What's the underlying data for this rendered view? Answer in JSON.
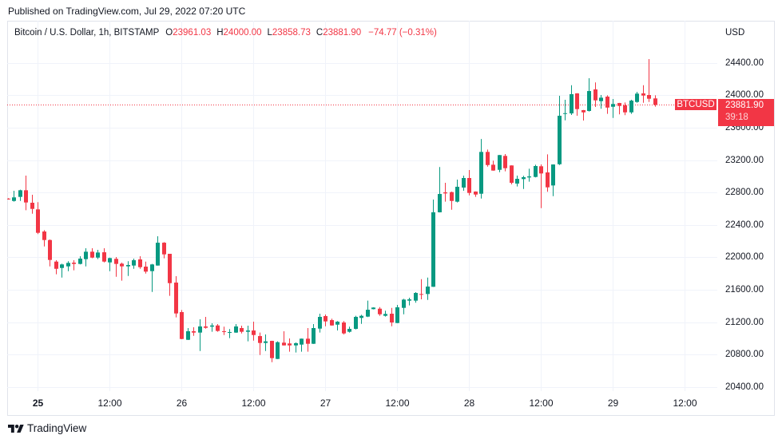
{
  "header": {
    "published": "Published on TradingView.com, Jul 29, 2022 07:20 UTC"
  },
  "legend": {
    "title": "Bitcoin / U.S. Dollar, 1h, BITSTAMP",
    "open_label": "O",
    "open_value": "23961.03",
    "high_label": "H",
    "high_value": "24000.00",
    "low_label": "L",
    "low_value": "23858.73",
    "close_label": "C",
    "close_value": "23881.90",
    "change": "−74.77 (−0.31%)"
  },
  "price_axis": {
    "currency": "USD"
  },
  "last_price": {
    "symbol": "BTCUSD",
    "price": "23881.90",
    "countdown": "39:18"
  },
  "footer": {
    "brand": "TradingView",
    "logo_icon": "tradingview-logo-icon"
  },
  "colors": {
    "up": "#089981",
    "down": "#f23645",
    "grid": "#f0f3fa",
    "border": "#e0e3eb",
    "text": "#131722",
    "last_price_line": "#f23645"
  },
  "chart_data": {
    "type": "candlestick",
    "title": "Bitcoin / U.S. Dollar, 1h, BITSTAMP",
    "symbol": "BTCUSD",
    "exchange": "BITSTAMP",
    "interval": "1h",
    "xlabel": "",
    "ylabel": "USD",
    "ylim": [
      20350,
      24919
    ],
    "grid": true,
    "x_start": "Jul 24 19:00",
    "last_price": 23881.9,
    "y_ticks": [
      {
        "value": 24400,
        "label": "24400.00"
      },
      {
        "value": 24000,
        "label": "24000.00"
      },
      {
        "value": 23600,
        "label": "23600.00"
      },
      {
        "value": 23200,
        "label": "23200.00"
      },
      {
        "value": 22800,
        "label": "22800.00"
      },
      {
        "value": 22400,
        "label": "22400.00"
      },
      {
        "value": 22000,
        "label": "22000.00"
      },
      {
        "value": 21600,
        "label": "21600.00"
      },
      {
        "value": 21200,
        "label": "21200.00"
      },
      {
        "value": 20800,
        "label": "20800.00"
      },
      {
        "value": 20400,
        "label": "20400.00"
      }
    ],
    "x_ticks": [
      {
        "label": "25",
        "bar": 5,
        "bold": true
      },
      {
        "label": "12:00",
        "bar": 17,
        "bold": false
      },
      {
        "label": "26",
        "bar": 29,
        "bold": false
      },
      {
        "label": "12:00",
        "bar": 41,
        "bold": false
      },
      {
        "label": "27",
        "bar": 53,
        "bold": false
      },
      {
        "label": "12:00",
        "bar": 65,
        "bold": false
      },
      {
        "label": "28",
        "bar": 77,
        "bold": false
      },
      {
        "label": "12:00",
        "bar": 89,
        "bold": false
      },
      {
        "label": "29",
        "bar": 101,
        "bold": false
      },
      {
        "label": "12:00",
        "bar": 113,
        "bold": false
      }
    ],
    "candle_fields": [
      "open",
      "high",
      "low",
      "close"
    ],
    "candles": [
      [
        22725,
        22730,
        22712,
        22718
      ],
      [
        22696,
        22821,
        22687,
        22740
      ],
      [
        22746,
        22835,
        22696,
        22828
      ],
      [
        22828,
        23009,
        22582,
        22677
      ],
      [
        22674,
        22772,
        22539,
        22598
      ],
      [
        22592,
        22681,
        22287,
        22303
      ],
      [
        22319,
        22336,
        22135,
        22214
      ],
      [
        22214,
        22221,
        21889,
        21968
      ],
      [
        21948,
        21965,
        21791,
        21859
      ],
      [
        21869,
        21922,
        21751,
        21913
      ],
      [
        21889,
        21952,
        21830,
        21932
      ],
      [
        21935,
        21965,
        21840,
        21919
      ],
      [
        21919,
        22014,
        21913,
        21985
      ],
      [
        21978,
        22113,
        21889,
        22070
      ],
      [
        22070,
        22113,
        21990,
        21997
      ],
      [
        21997,
        22093,
        21978,
        22060
      ],
      [
        22063,
        22113,
        21938,
        21948
      ],
      [
        21938,
        21997,
        21830,
        21991
      ],
      [
        21982,
        22004,
        21761,
        21919
      ],
      [
        21922,
        21935,
        21712,
        21889
      ],
      [
        21889,
        21952,
        21771,
        21906
      ],
      [
        21899,
        21985,
        21859,
        21965
      ],
      [
        21975,
        22014,
        21859,
        21879
      ],
      [
        21886,
        21948,
        21800,
        21824
      ],
      [
        21830,
        21919,
        21574,
        21913
      ],
      [
        21899,
        22260,
        21899,
        22181
      ],
      [
        22181,
        22188,
        21988,
        22037
      ],
      [
        22044,
        22044,
        21525,
        21682
      ],
      [
        21689,
        21768,
        21259,
        21308
      ],
      [
        21325,
        21351,
        20990,
        20993
      ],
      [
        20983,
        21128,
        20980,
        21089
      ],
      [
        21089,
        21138,
        21032,
        21072
      ],
      [
        21072,
        21236,
        20845,
        21148
      ],
      [
        21148,
        21266,
        21121,
        21131
      ],
      [
        21145,
        21187,
        21082,
        21160
      ],
      [
        21160,
        21177,
        21082,
        21092
      ],
      [
        21089,
        21145,
        21042,
        21079
      ],
      [
        21069,
        21115,
        21003,
        21079
      ],
      [
        21072,
        21177,
        21069,
        21148
      ],
      [
        21128,
        21157,
        21062,
        21082
      ],
      [
        21082,
        21157,
        20964,
        21098
      ],
      [
        21098,
        21207,
        20973,
        21042
      ],
      [
        21029,
        21072,
        20796,
        20944
      ],
      [
        20944,
        21049,
        20845,
        20964
      ],
      [
        20970,
        20972,
        20707,
        20757
      ],
      [
        20747,
        20964,
        20745,
        20954
      ],
      [
        20948,
        21089,
        20912,
        20914
      ],
      [
        20938,
        21000,
        20836,
        20914
      ],
      [
        20914,
        20951,
        20826,
        20941
      ],
      [
        20924,
        20999,
        20836,
        20997
      ],
      [
        20997,
        21128,
        20836,
        20934
      ],
      [
        20934,
        21177,
        20932,
        21128
      ],
      [
        21121,
        21305,
        21072,
        21266
      ],
      [
        21276,
        21295,
        21150,
        21210
      ],
      [
        21226,
        21243,
        21158,
        21160
      ],
      [
        21170,
        21214,
        21098,
        21207
      ],
      [
        21197,
        21214,
        21049,
        21062
      ],
      [
        21082,
        21145,
        21072,
        21118
      ],
      [
        21118,
        21279,
        21111,
        21266
      ],
      [
        21253,
        21292,
        21180,
        21279
      ],
      [
        21269,
        21466,
        21263,
        21354
      ],
      [
        21361,
        21384,
        21358,
        21381
      ],
      [
        21367,
        21387,
        21279,
        21298
      ],
      [
        21279,
        21342,
        21269,
        21302
      ],
      [
        21305,
        21377,
        21150,
        21197
      ],
      [
        21190,
        21413,
        21188,
        21384
      ],
      [
        21377,
        21489,
        21298,
        21479
      ],
      [
        21466,
        21502,
        21407,
        21482
      ],
      [
        21466,
        21571,
        21440,
        21561
      ],
      [
        21548,
        21731,
        21482,
        21539
      ],
      [
        21548,
        21751,
        21475,
        21640
      ],
      [
        21637,
        22713,
        21635,
        22556
      ],
      [
        22556,
        23114,
        22554,
        22782
      ],
      [
        22802,
        22920,
        22687,
        22789
      ],
      [
        22805,
        22812,
        22588,
        22696
      ],
      [
        22687,
        22959,
        22677,
        22871
      ],
      [
        22861,
        23009,
        22821,
        22979
      ],
      [
        22979,
        23077,
        22765,
        22795
      ],
      [
        22812,
        22814,
        22746,
        22775
      ],
      [
        22785,
        23461,
        22726,
        23301
      ],
      [
        23301,
        23330,
        23120,
        23139
      ],
      [
        23143,
        23193,
        23069,
        23071
      ],
      [
        23080,
        23264,
        23051,
        23262
      ],
      [
        23252,
        23274,
        23061,
        23100
      ],
      [
        23134,
        23136,
        22900,
        22920
      ],
      [
        22910,
        23009,
        22874,
        22969
      ],
      [
        22966,
        23006,
        22844,
        22989
      ],
      [
        22986,
        23094,
        22933,
        22999
      ],
      [
        22992,
        23143,
        22986,
        23127
      ],
      [
        23124,
        23146,
        22608,
        23035
      ],
      [
        23048,
        23271,
        22809,
        22864
      ],
      [
        22887,
        23148,
        22755,
        23146
      ],
      [
        23149,
        23993,
        23139,
        23747
      ],
      [
        23770,
        23944,
        23691,
        23779
      ],
      [
        23776,
        24124,
        23757,
        24013
      ],
      [
        24023,
        24025,
        23747,
        23829
      ],
      [
        23816,
        23818,
        23688,
        23789
      ],
      [
        23806,
        24210,
        23799,
        24052
      ],
      [
        24072,
        24158,
        23855,
        23937
      ],
      [
        23927,
        24003,
        23833,
        23970
      ],
      [
        23983,
        24000,
        23770,
        23848
      ],
      [
        23858,
        23954,
        23720,
        23892
      ],
      [
        23904,
        23906,
        23764,
        23868
      ],
      [
        23875,
        23911,
        23754,
        23789
      ],
      [
        23789,
        23944,
        23770,
        23934
      ],
      [
        23917,
        24042,
        23907,
        24020
      ],
      [
        24023,
        24124,
        23907,
        23996
      ],
      [
        24003,
        24446,
        23917,
        23957
      ],
      [
        23961.03,
        24000.0,
        23858.73,
        23881.9
      ]
    ]
  }
}
